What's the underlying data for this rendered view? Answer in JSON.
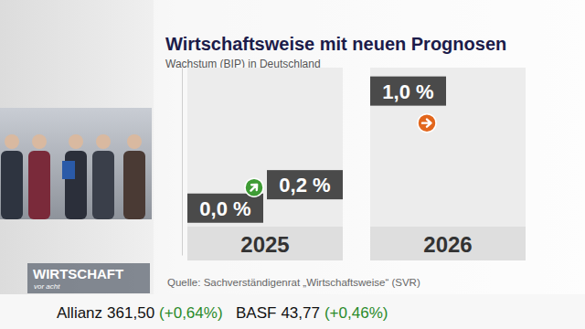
{
  "chart_data": {
    "type": "bar",
    "title": "Wirtschaftsweise mit neuen Prognosen",
    "subtitle": "Wachstum (BIP) in Deutschland",
    "source": "Quelle: Sachverständigenrat „Wirtschaftsweise“ (SVR)",
    "categories": [
      "2025",
      "2026"
    ],
    "series": [
      {
        "values": [
          0.0,
          null
        ],
        "value_labels": [
          "0,0 %",
          null
        ],
        "color": "#4a4a4a"
      },
      {
        "values": [
          0.2,
          1.0
        ],
        "value_labels": [
          "0,2 %",
          "1,0 %"
        ],
        "color": "#4a4a4a"
      }
    ],
    "ylim": [
      -0.4,
      1.2
    ],
    "yticks": [],
    "grid": false,
    "data_labels": true,
    "tick_labels": false
  },
  "broadcast": {
    "logo": [
      "WIRTSCHAFT",
      "vor acht"
    ],
    "ticker": [
      {
        "name": "Allianz",
        "price": "361,50",
        "change": "(+0,64%)"
      },
      {
        "name": "BASF",
        "price": "43,77",
        "change": "(+0,46%)"
      }
    ]
  }
}
